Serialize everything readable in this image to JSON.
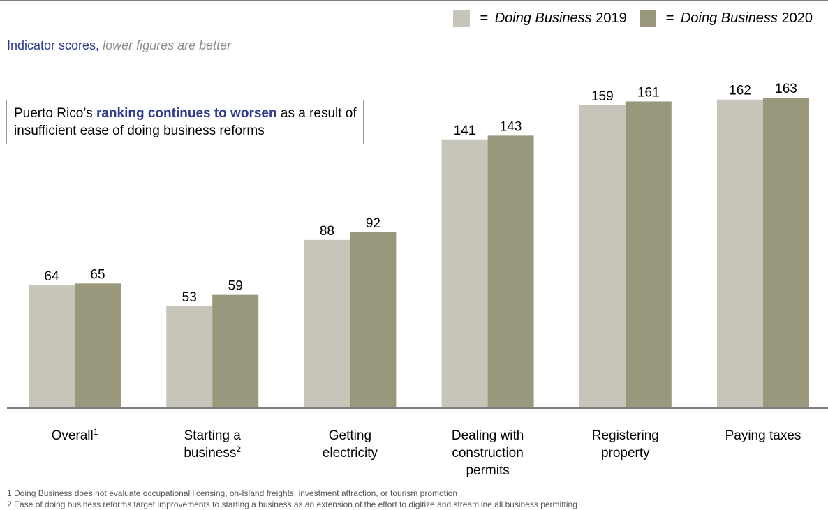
{
  "legend": {
    "items": [
      {
        "prefix": "= ",
        "italic": "Doing Business",
        "suffix": " 2019",
        "color": "#c7c5b9"
      },
      {
        "prefix": "= ",
        "italic": "Doing Business",
        "suffix": " 2020",
        "color": "#9a987c"
      }
    ]
  },
  "subtitle": {
    "lead": "Indicator scores,",
    "tail": "lower figures are better"
  },
  "callout": {
    "pre": "Puerto Rico’s ",
    "bold": "ranking continues to worsen",
    "post": " as a result of insufficient ease of doing business reforms"
  },
  "chart_data": {
    "type": "bar",
    "categories": [
      {
        "lines": [
          "Overall"
        ],
        "sup": "1"
      },
      {
        "lines": [
          "Starting a",
          "business"
        ],
        "sup": "2"
      },
      {
        "lines": [
          "Getting",
          "electricity"
        ],
        "sup": ""
      },
      {
        "lines": [
          "Dealing with",
          "construction",
          "permits"
        ],
        "sup": ""
      },
      {
        "lines": [
          "Registering",
          "property"
        ],
        "sup": ""
      },
      {
        "lines": [
          "Paying taxes"
        ],
        "sup": ""
      }
    ],
    "series": [
      {
        "name": "Doing Business 2019",
        "color": "#c7c5b9",
        "values": [
          64,
          53,
          88,
          141,
          159,
          162
        ]
      },
      {
        "name": "Doing Business 2020",
        "color": "#9a987c",
        "values": [
          65,
          59,
          92,
          143,
          161,
          163
        ]
      }
    ],
    "ylim": [
      0,
      180
    ],
    "grid": false,
    "legend_position": "top-right",
    "baseline_color": "#7f7f7f"
  },
  "footnotes": [
    "1 Doing Business does not evaluate occupational licensing, on-Island freights, investment attraction, or tourism promotion",
    "2 Ease of doing business reforms target improvements to starting a business as an extension of the effort to digitize and streamline all business permitting"
  ]
}
